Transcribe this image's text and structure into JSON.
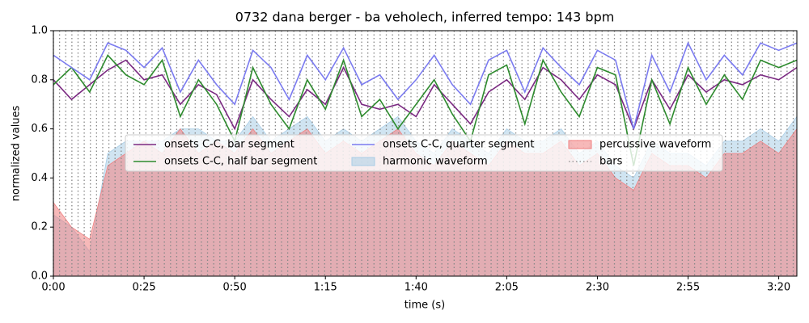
{
  "chart_data": {
    "type": "line",
    "title": "0732 dana berger - ba veholech, inferred tempo: 143 bpm",
    "x_label": "time (s)",
    "y_label": "normalized values",
    "xlim": [
      0,
      205
    ],
    "ylim": [
      0,
      1
    ],
    "xticks": [
      {
        "value": 0,
        "label": "0:00"
      },
      {
        "value": 25,
        "label": "0:25"
      },
      {
        "value": 50,
        "label": "0:50"
      },
      {
        "value": 75,
        "label": "1:15"
      },
      {
        "value": 100,
        "label": "1:40"
      },
      {
        "value": 125,
        "label": "2:05"
      },
      {
        "value": 150,
        "label": "2:30"
      },
      {
        "value": 175,
        "label": "2:55"
      },
      {
        "value": 200,
        "label": "3:20"
      }
    ],
    "yticks": [
      {
        "value": 0,
        "label": "0.0"
      },
      {
        "value": 0.2,
        "label": "0.2"
      },
      {
        "value": 0.4,
        "label": "0.4"
      },
      {
        "value": 0.6,
        "label": "0.6"
      },
      {
        "value": 0.8,
        "label": "0.8"
      },
      {
        "value": 1,
        "label": "1.0"
      }
    ],
    "legend": "center",
    "x": [
      0,
      5,
      10,
      15,
      20,
      25,
      30,
      35,
      40,
      45,
      50,
      55,
      60,
      65,
      70,
      75,
      80,
      85,
      90,
      95,
      100,
      105,
      110,
      115,
      120,
      125,
      130,
      135,
      140,
      145,
      150,
      155,
      160,
      165,
      170,
      175,
      180,
      185,
      190,
      195,
      200,
      205
    ],
    "series": [
      {
        "name": "onsets C-C, bar segment",
        "kind": "line",
        "color": "#7b2a82",
        "values": [
          0.8,
          0.72,
          0.78,
          0.84,
          0.88,
          0.8,
          0.82,
          0.7,
          0.78,
          0.74,
          0.6,
          0.8,
          0.72,
          0.65,
          0.76,
          0.7,
          0.85,
          0.7,
          0.68,
          0.7,
          0.65,
          0.78,
          0.7,
          0.62,
          0.75,
          0.8,
          0.72,
          0.85,
          0.8,
          0.72,
          0.82,
          0.78,
          0.6,
          0.8,
          0.68,
          0.82,
          0.75,
          0.8,
          0.78,
          0.82,
          0.8,
          0.85
        ]
      },
      {
        "name": "onsets C-C, half bar segment",
        "kind": "line",
        "color": "#2e8b2e",
        "values": [
          0.78,
          0.85,
          0.75,
          0.9,
          0.82,
          0.78,
          0.88,
          0.65,
          0.8,
          0.7,
          0.55,
          0.85,
          0.7,
          0.6,
          0.8,
          0.68,
          0.88,
          0.65,
          0.72,
          0.6,
          0.7,
          0.8,
          0.66,
          0.55,
          0.82,
          0.86,
          0.62,
          0.88,
          0.75,
          0.65,
          0.85,
          0.82,
          0.45,
          0.8,
          0.62,
          0.85,
          0.7,
          0.82,
          0.72,
          0.88,
          0.85,
          0.88
        ]
      },
      {
        "name": "onsets C-C, quarter segment",
        "kind": "line",
        "color": "#7b7bf0",
        "values": [
          0.9,
          0.85,
          0.8,
          0.95,
          0.92,
          0.85,
          0.93,
          0.75,
          0.88,
          0.78,
          0.7,
          0.92,
          0.85,
          0.72,
          0.9,
          0.8,
          0.93,
          0.78,
          0.82,
          0.72,
          0.8,
          0.9,
          0.78,
          0.7,
          0.88,
          0.92,
          0.75,
          0.93,
          0.85,
          0.78,
          0.92,
          0.88,
          0.6,
          0.9,
          0.75,
          0.95,
          0.8,
          0.9,
          0.82,
          0.95,
          0.92,
          0.95
        ]
      },
      {
        "name": "harmonic waveform",
        "kind": "area",
        "color": "#a9cde6",
        "values": [
          0.25,
          0.2,
          0.1,
          0.5,
          0.55,
          0.55,
          0.55,
          0.6,
          0.6,
          0.55,
          0.55,
          0.65,
          0.55,
          0.6,
          0.65,
          0.55,
          0.6,
          0.55,
          0.6,
          0.65,
          0.55,
          0.5,
          0.6,
          0.55,
          0.5,
          0.6,
          0.55,
          0.55,
          0.6,
          0.5,
          0.55,
          0.45,
          0.4,
          0.55,
          0.5,
          0.5,
          0.45,
          0.55,
          0.55,
          0.6,
          0.55,
          0.65
        ]
      },
      {
        "name": "percussive waveform",
        "kind": "area",
        "color": "#f08080",
        "values": [
          0.3,
          0.2,
          0.15,
          0.45,
          0.5,
          0.55,
          0.5,
          0.6,
          0.5,
          0.55,
          0.5,
          0.6,
          0.5,
          0.55,
          0.6,
          0.5,
          0.55,
          0.5,
          0.55,
          0.6,
          0.5,
          0.45,
          0.55,
          0.5,
          0.45,
          0.55,
          0.5,
          0.5,
          0.55,
          0.45,
          0.5,
          0.4,
          0.35,
          0.5,
          0.45,
          0.45,
          0.4,
          0.5,
          0.5,
          0.55,
          0.5,
          0.6
        ]
      },
      {
        "name": "bars",
        "kind": "vlines",
        "color": "#888888",
        "x": [
          0,
          1.7,
          3.4,
          5.1,
          6.8,
          8.5,
          10.2,
          11.9,
          13.6,
          15.3,
          17,
          18.7,
          20.4,
          22.1,
          23.8,
          25.5,
          27.2,
          28.9,
          30.6,
          32.3,
          34,
          35.7,
          37.4,
          39.1,
          40.8,
          42.5,
          44.2,
          45.9,
          47.6,
          49.3,
          51,
          52.7,
          54.4,
          56.1,
          57.8,
          59.5,
          61.2,
          62.9,
          64.6,
          66.3,
          68,
          69.7,
          71.4,
          73.1,
          74.8,
          76.5,
          78.2,
          79.9,
          81.6,
          83.3,
          85,
          86.7,
          88.4,
          90.1,
          91.8,
          93.5,
          95.2,
          96.9,
          98.6,
          100.3,
          102,
          103.7,
          105.4,
          107.1,
          108.8,
          110.5,
          112.2,
          113.9,
          115.6,
          117.3,
          119,
          120.7,
          122.4,
          124.1,
          125.8,
          127.5,
          129.2,
          130.9,
          132.6,
          134.3,
          136,
          137.7,
          139.4,
          141.1,
          142.8,
          144.5,
          146.2,
          147.9,
          149.6,
          151.3,
          153,
          154.7,
          156.4,
          158.1,
          159.8,
          161.5,
          163.2,
          164.9,
          166.6,
          168.3,
          170,
          171.7,
          173.4,
          175.1,
          176.8,
          178.5,
          180.2,
          181.9,
          183.6,
          185.3,
          187,
          188.7,
          190.4,
          192.1,
          193.8,
          195.5,
          197.2,
          198.9,
          200.6,
          202.3,
          204
        ]
      }
    ]
  }
}
